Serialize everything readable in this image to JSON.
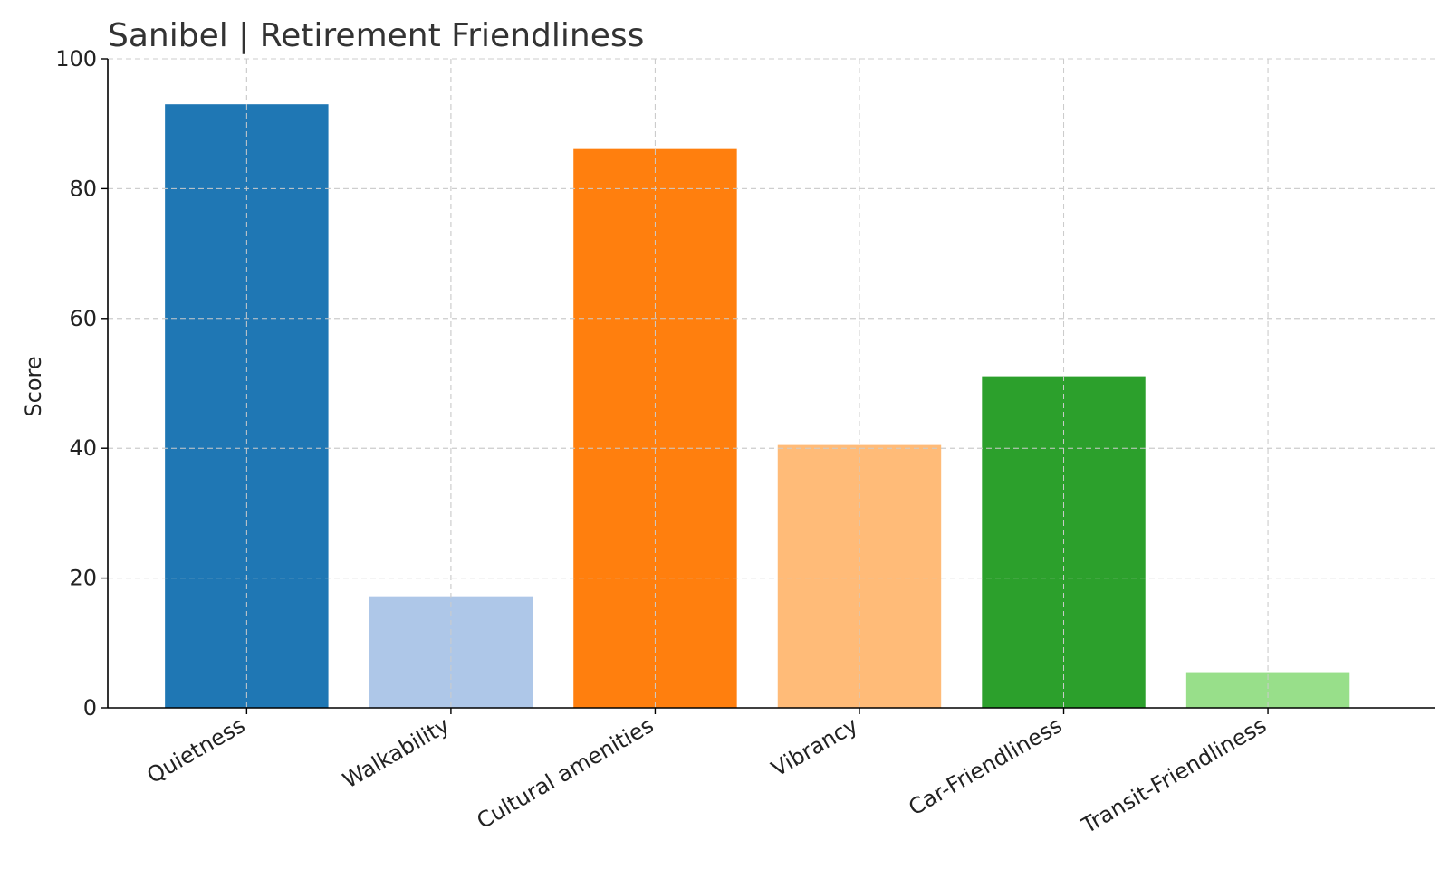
{
  "chart_data": {
    "type": "bar",
    "title": "Sanibel | Retirement Friendliness",
    "xlabel": "",
    "ylabel": "Score",
    "ylim": [
      0,
      100
    ],
    "yticks": [
      0,
      20,
      40,
      60,
      80,
      100
    ],
    "grid": true,
    "categories": [
      "Quietness",
      "Walkability",
      "Cultural amenities",
      "Vibrancy",
      "Car-Friendliness",
      "Transit-Friendliness"
    ],
    "values": [
      93,
      17.2,
      86.1,
      40.5,
      51.1,
      5.5
    ],
    "colors": [
      "#1f77b4",
      "#aec7e8",
      "#ff7f0e",
      "#ffbb78",
      "#2ca02c",
      "#98df8a"
    ]
  }
}
